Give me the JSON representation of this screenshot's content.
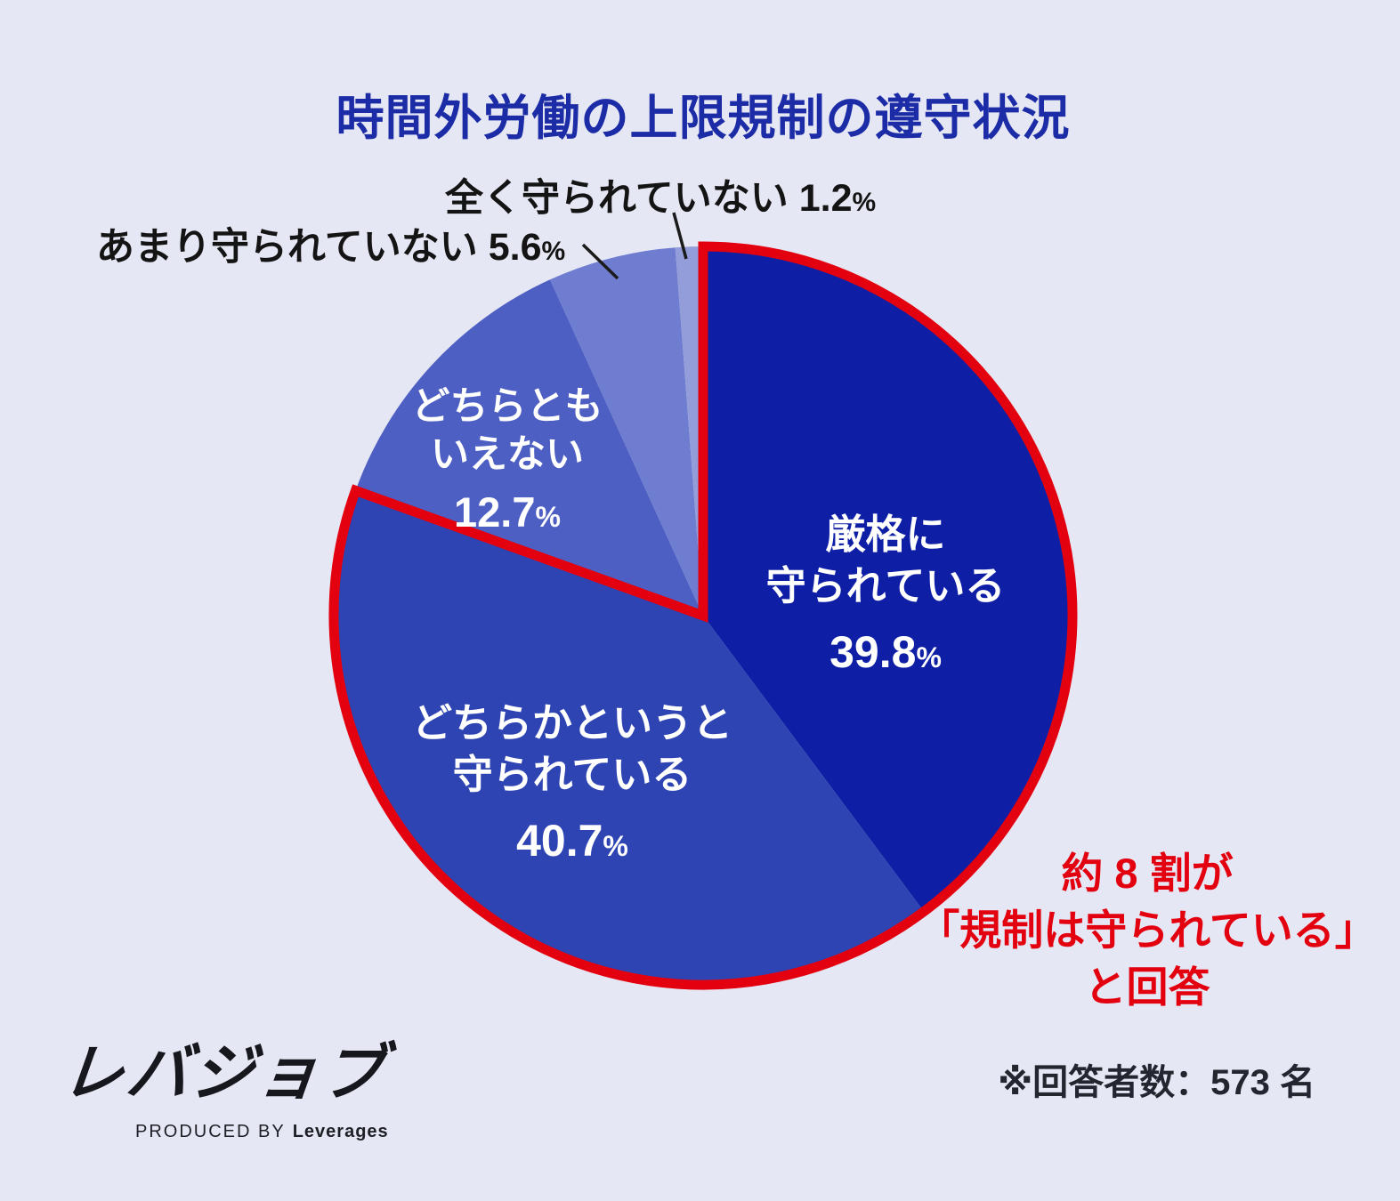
{
  "title": "時間外労働の上限規制の遵守状況",
  "chart_data": {
    "type": "pie",
    "title": "時間外労働の上限規制の遵守状況",
    "labels": [
      "厳格に守られている",
      "どちらかというと守られている",
      "どちらともいえない",
      "あまり守られていない",
      "全く守られていない"
    ],
    "values": [
      39.8,
      40.7,
      12.7,
      5.6,
      1.2
    ],
    "unit": "%",
    "colors": [
      "#0E1FA5",
      "#2E44B3",
      "#4E5FC3",
      "#6F7DD0",
      "#929DD9"
    ],
    "start_angle_deg": 0,
    "direction": "clockwise",
    "highlight_color": "#E3000F",
    "highlighted_slices": [
      0,
      1
    ],
    "annotation": "約 8 割が「規制は守られている」と回答",
    "legend": "none",
    "background_color": "#E6E7F4"
  },
  "slices": [
    {
      "name_line1": "厳格に",
      "name_line2": "守られている",
      "value": "39.8",
      "unit": "%"
    },
    {
      "name_line1": "どちらかというと",
      "name_line2": "守られている",
      "value": "40.7",
      "unit": "%"
    },
    {
      "name_line1": "どちらとも",
      "name_line2": "いえない",
      "value": "12.7",
      "unit": "%"
    }
  ],
  "callouts": {
    "none": {
      "label": "全く守られていない",
      "value": "1.2",
      "unit": "%"
    },
    "rarely": {
      "label": "あまり守られていない",
      "value": "5.6",
      "unit": "%"
    }
  },
  "annotation": {
    "line1": "約 8 割が",
    "line2": "「規制は守られている」",
    "line3": "と回答"
  },
  "footnote": "※回答者数：573 名",
  "logo": {
    "wordmark": "レバジョブ",
    "byline_prefix": "PRODUCED BY",
    "byline_brand": "Leverages"
  }
}
